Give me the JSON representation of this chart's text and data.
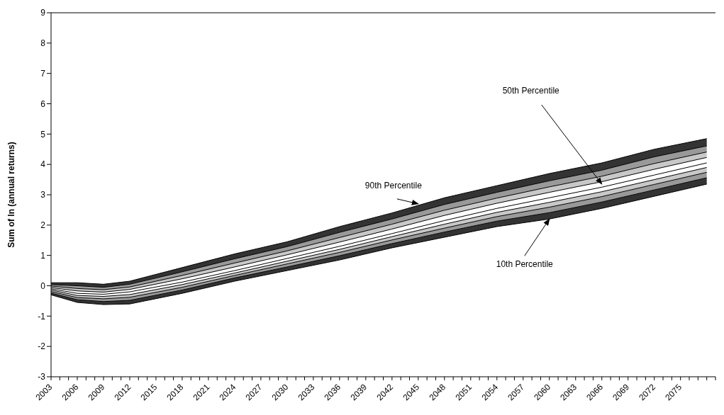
{
  "chart_data": {
    "type": "line",
    "ylabel": "Sum of ln (annual returns)",
    "x": [
      2003,
      2006,
      2009,
      2012,
      2018,
      2024,
      2030,
      2036,
      2042,
      2048,
      2054,
      2060,
      2066,
      2072,
      2078
    ],
    "xlim": [
      2003,
      2079
    ],
    "xticks": [
      2003,
      {
        "value": 2004,
        "label": null
      },
      {
        "value": 2005,
        "label": null
      },
      2006,
      {
        "value": 2007,
        "label": null
      },
      {
        "value": 2008,
        "label": null
      },
      2009,
      {
        "value": 2010,
        "label": null
      },
      {
        "value": 2011,
        "label": null
      },
      2012,
      {
        "value": 2013,
        "label": null
      },
      {
        "value": 2014,
        "label": null
      },
      2015,
      {
        "value": 2016,
        "label": null
      },
      {
        "value": 2017,
        "label": null
      },
      2018,
      {
        "value": 2019,
        "label": null
      },
      {
        "value": 2020,
        "label": null
      },
      2021,
      {
        "value": 2022,
        "label": null
      },
      {
        "value": 2023,
        "label": null
      },
      2024,
      {
        "value": 2025,
        "label": null
      },
      {
        "value": 2026,
        "label": null
      },
      2027,
      {
        "value": 2028,
        "label": null
      },
      {
        "value": 2029,
        "label": null
      },
      2030,
      {
        "value": 2031,
        "label": null
      },
      {
        "value": 2032,
        "label": null
      },
      2033,
      {
        "value": 2034,
        "label": null
      },
      {
        "value": 2035,
        "label": null
      },
      2036,
      {
        "value": 2037,
        "label": null
      },
      {
        "value": 2038,
        "label": null
      },
      2039,
      {
        "value": 2040,
        "label": null
      },
      {
        "value": 2041,
        "label": null
      },
      2042,
      {
        "value": 2043,
        "label": null
      },
      {
        "value": 2044,
        "label": null
      },
      2045,
      {
        "value": 2046,
        "label": null
      },
      {
        "value": 2047,
        "label": null
      },
      2048,
      {
        "value": 2049,
        "label": null
      },
      {
        "value": 2050,
        "label": null
      },
      2051,
      {
        "value": 2052,
        "label": null
      },
      {
        "value": 2053,
        "label": null
      },
      2054,
      {
        "value": 2055,
        "label": null
      },
      {
        "value": 2056,
        "label": null
      },
      2057,
      {
        "value": 2058,
        "label": null
      },
      {
        "value": 2059,
        "label": null
      },
      2060,
      {
        "value": 2061,
        "label": null
      },
      {
        "value": 2062,
        "label": null
      },
      2063,
      {
        "value": 2064,
        "label": null
      },
      {
        "value": 2065,
        "label": null
      },
      2066,
      {
        "value": 2067,
        "label": null
      },
      {
        "value": 2068,
        "label": null
      },
      2069,
      {
        "value": 2070,
        "label": null
      },
      {
        "value": 2071,
        "label": null
      },
      2072,
      {
        "value": 2073,
        "label": null
      },
      {
        "value": 2074,
        "label": null
      },
      2075,
      {
        "value": 2076,
        "label": null
      },
      {
        "value": 2077,
        "label": null
      },
      {
        "value": 2078,
        "label": null
      },
      {
        "value": 2079,
        "label": null
      }
    ],
    "ylim": [
      -3,
      9
    ],
    "yticks": [
      -3,
      -2,
      -1,
      0,
      1,
      2,
      3,
      4,
      5,
      6,
      7,
      8,
      9
    ],
    "grid": false,
    "marker": "none",
    "line_style": "solid",
    "colors": [
      "#333333",
      "#999999",
      "#c8c8c8",
      null,
      null,
      null,
      "#c8c8c8",
      "#999999",
      "#333333"
    ],
    "series": [
      {
        "type": "line",
        "color": "#000000",
        "values": [
          -0.3,
          -0.55,
          -0.62,
          -0.6,
          -0.25,
          0.15,
          0.5,
          0.85,
          1.25,
          1.6,
          1.95,
          2.2,
          2.55,
          2.95,
          3.35
        ],
        "lower": [
          -0.3,
          -0.55,
          -0.62,
          -0.6,
          -0.25,
          0.15,
          0.5,
          0.85,
          1.25,
          1.6,
          1.95,
          2.2,
          2.55,
          2.95,
          3.35
        ],
        "upper": [
          -0.24,
          -0.46,
          -0.52,
          -0.48,
          -0.14,
          0.26,
          0.62,
          0.99,
          1.39,
          1.77,
          2.13,
          2.41,
          2.76,
          3.16,
          3.56
        ]
      },
      {
        "type": "line",
        "color": "#000000",
        "values": [
          -0.24,
          -0.46,
          -0.52,
          -0.48,
          -0.14,
          0.26,
          0.62,
          0.99,
          1.39,
          1.77,
          2.13,
          2.41,
          2.76,
          3.16,
          3.56
        ],
        "lower": [
          -0.24,
          -0.46,
          -0.52,
          -0.48,
          -0.14,
          0.26,
          0.62,
          0.99,
          1.39,
          1.77,
          2.13,
          2.41,
          2.76,
          3.16,
          3.56
        ],
        "upper": [
          -0.19,
          -0.39,
          -0.43,
          -0.38,
          -0.05,
          0.34,
          0.72,
          1.1,
          1.51,
          1.9,
          2.28,
          2.59,
          2.94,
          3.34,
          3.74
        ]
      },
      {
        "type": "line",
        "color": "#000000",
        "values": [
          -0.19,
          -0.39,
          -0.43,
          -0.38,
          -0.05,
          0.34,
          0.72,
          1.1,
          1.51,
          1.9,
          2.28,
          2.59,
          2.94,
          3.34,
          3.74
        ],
        "lower": [
          -0.19,
          -0.39,
          -0.43,
          -0.38,
          -0.05,
          0.34,
          0.72,
          1.1,
          1.51,
          1.9,
          2.28,
          2.59,
          2.94,
          3.34,
          3.74
        ],
        "upper": [
          -0.14,
          -0.32,
          -0.35,
          -0.29,
          0.04,
          0.42,
          0.81,
          1.2,
          1.62,
          2.03,
          2.42,
          2.75,
          3.1,
          3.5,
          3.9
        ]
      },
      {
        "type": "line",
        "color": "#000000",
        "values": [
          -0.14,
          -0.32,
          -0.35,
          -0.29,
          0.04,
          0.42,
          0.81,
          1.2,
          1.62,
          2.03,
          2.42,
          2.75,
          3.1,
          3.5,
          3.9
        ]
      },
      {
        "type": "line",
        "color": "#000000",
        "values": [
          -0.1,
          -0.25,
          -0.28,
          -0.2,
          0.12,
          0.5,
          0.9,
          1.3,
          1.72,
          2.15,
          2.55,
          2.9,
          3.25,
          3.65,
          4.05
        ]
      },
      {
        "type": "line",
        "color": "#000000",
        "values": [
          -0.06,
          -0.17,
          -0.21,
          -0.12,
          0.23,
          0.62,
          1.02,
          1.44,
          1.87,
          2.32,
          2.72,
          3.08,
          3.43,
          3.84,
          4.23
        ]
      },
      {
        "type": "line",
        "color": "#000000",
        "values": [
          -0.01,
          -0.09,
          -0.13,
          -0.04,
          0.34,
          0.75,
          1.15,
          1.59,
          2.03,
          2.49,
          2.89,
          3.26,
          3.61,
          4.03,
          4.41
        ],
        "lower": [
          -0.06,
          -0.17,
          -0.21,
          -0.12,
          0.23,
          0.62,
          1.02,
          1.44,
          1.87,
          2.32,
          2.72,
          3.08,
          3.43,
          3.84,
          4.23
        ],
        "upper": [
          -0.01,
          -0.09,
          -0.13,
          -0.04,
          0.34,
          0.75,
          1.15,
          1.59,
          2.03,
          2.49,
          2.89,
          3.26,
          3.61,
          4.03,
          4.41
        ]
      },
      {
        "type": "line",
        "color": "#000000",
        "values": [
          0.04,
          0.0,
          -0.05,
          0.05,
          0.46,
          0.89,
          1.29,
          1.76,
          2.2,
          2.68,
          3.08,
          3.46,
          3.81,
          4.25,
          4.61
        ],
        "lower": [
          -0.01,
          -0.09,
          -0.13,
          -0.04,
          0.34,
          0.75,
          1.15,
          1.59,
          2.03,
          2.49,
          2.89,
          3.26,
          3.61,
          4.03,
          4.41
        ],
        "upper": [
          0.04,
          0.0,
          -0.05,
          0.05,
          0.46,
          0.89,
          1.29,
          1.76,
          2.2,
          2.68,
          3.08,
          3.46,
          3.81,
          4.25,
          4.61
        ]
      },
      {
        "type": "line",
        "color": "#000000",
        "values": [
          0.1,
          0.1,
          0.05,
          0.15,
          0.6,
          1.05,
          1.45,
          1.95,
          2.4,
          2.9,
          3.3,
          3.7,
          4.05,
          4.5,
          4.85
        ],
        "lower": [
          0.04,
          0.0,
          -0.05,
          0.05,
          0.46,
          0.89,
          1.29,
          1.76,
          2.2,
          2.68,
          3.08,
          3.46,
          3.81,
          4.25,
          4.61
        ],
        "upper": [
          0.1,
          0.1,
          0.05,
          0.15,
          0.6,
          1.05,
          1.45,
          1.95,
          2.4,
          2.9,
          3.3,
          3.7,
          4.05,
          4.5,
          4.85
        ]
      }
    ],
    "annotations": [
      {
        "text": "90th Percentile",
        "x": 2045,
        "y": 2.7
      },
      {
        "text": "50th Percentile",
        "x": 2066,
        "y": 3.35
      },
      {
        "text": "10th Percentile",
        "x": 2060,
        "y": 2.2
      }
    ]
  }
}
